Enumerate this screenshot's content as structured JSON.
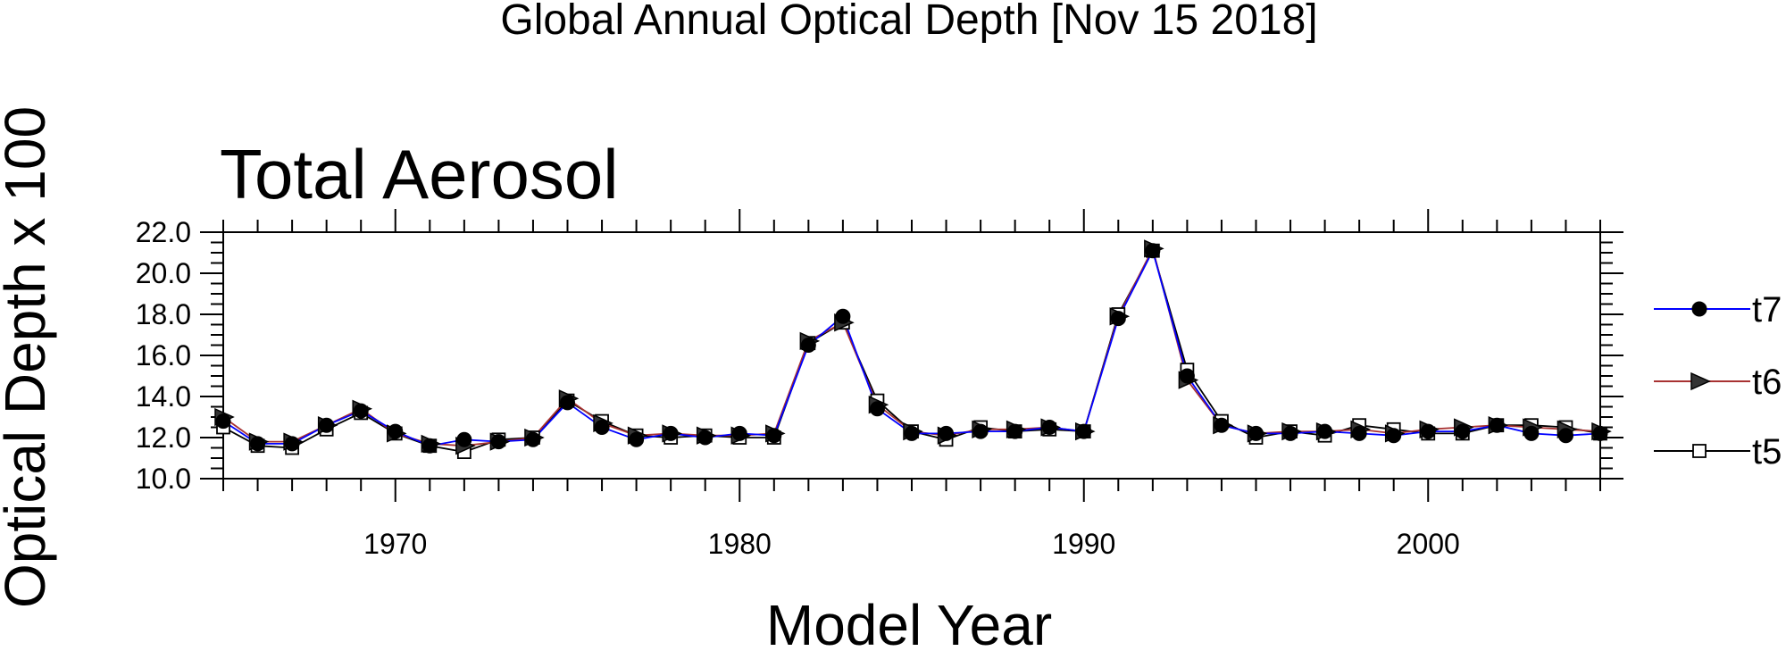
{
  "chart_data": {
    "type": "line",
    "title": "Global Annual Optical Depth [Nov 15 2018]",
    "subtitle": "Total Aerosol",
    "xlabel": "Model Year",
    "ylabel": "Optical Depth x 100",
    "xlim": [
      1965,
      2005
    ],
    "ylim": [
      10.0,
      22.0
    ],
    "xticks": [
      1970,
      1980,
      1990,
      2000
    ],
    "yticks": [
      "10.0",
      "12.0",
      "14.0",
      "16.0",
      "18.0",
      "20.0",
      "22.0"
    ],
    "grid": false,
    "legend_position": "right",
    "x": [
      1965,
      1966,
      1967,
      1968,
      1969,
      1970,
      1971,
      1972,
      1973,
      1974,
      1975,
      1976,
      1977,
      1978,
      1979,
      1980,
      1981,
      1982,
      1983,
      1984,
      1985,
      1986,
      1987,
      1988,
      1989,
      1990,
      1991,
      1992,
      1993,
      1994,
      1995,
      1996,
      1997,
      1998,
      1999,
      2000,
      2001,
      2002,
      2003,
      2004,
      2005
    ],
    "series": [
      {
        "name": "t7",
        "color": "#0000ff",
        "marker": "filled-circle",
        "values": [
          12.8,
          11.7,
          11.7,
          12.6,
          13.3,
          12.3,
          11.6,
          11.9,
          11.8,
          11.9,
          13.7,
          12.5,
          11.9,
          12.2,
          12.0,
          12.2,
          12.1,
          16.5,
          17.9,
          13.4,
          12.2,
          12.2,
          12.3,
          12.3,
          12.5,
          12.3,
          17.8,
          21.1,
          15.0,
          12.6,
          12.2,
          12.2,
          12.3,
          12.2,
          12.1,
          12.3,
          12.3,
          12.6,
          12.2,
          12.1,
          12.2
        ]
      },
      {
        "name": "t6",
        "color": "#a83232",
        "marker": "triangle-right",
        "values": [
          13.0,
          11.8,
          11.8,
          12.6,
          13.4,
          12.2,
          11.7,
          11.6,
          11.8,
          12.0,
          13.9,
          12.7,
          12.1,
          12.2,
          12.1,
          12.1,
          12.2,
          16.7,
          17.6,
          13.6,
          12.3,
          12.1,
          12.4,
          12.4,
          12.5,
          12.3,
          17.9,
          21.2,
          14.8,
          12.6,
          12.2,
          12.3,
          12.3,
          12.4,
          12.2,
          12.4,
          12.5,
          12.6,
          12.5,
          12.4,
          12.3
        ]
      },
      {
        "name": "t5",
        "color": "#000000",
        "marker": "open-square",
        "values": [
          12.5,
          11.6,
          11.5,
          12.4,
          13.2,
          12.2,
          11.6,
          11.3,
          11.9,
          12.0,
          13.8,
          12.8,
          12.1,
          12.0,
          12.1,
          12.0,
          12.0,
          16.6,
          17.6,
          13.8,
          12.3,
          11.9,
          12.5,
          12.3,
          12.4,
          12.3,
          18.0,
          21.1,
          15.3,
          12.8,
          12.0,
          12.3,
          12.1,
          12.6,
          12.4,
          12.2,
          12.2,
          12.6,
          12.6,
          12.5,
          12.2
        ]
      }
    ]
  }
}
